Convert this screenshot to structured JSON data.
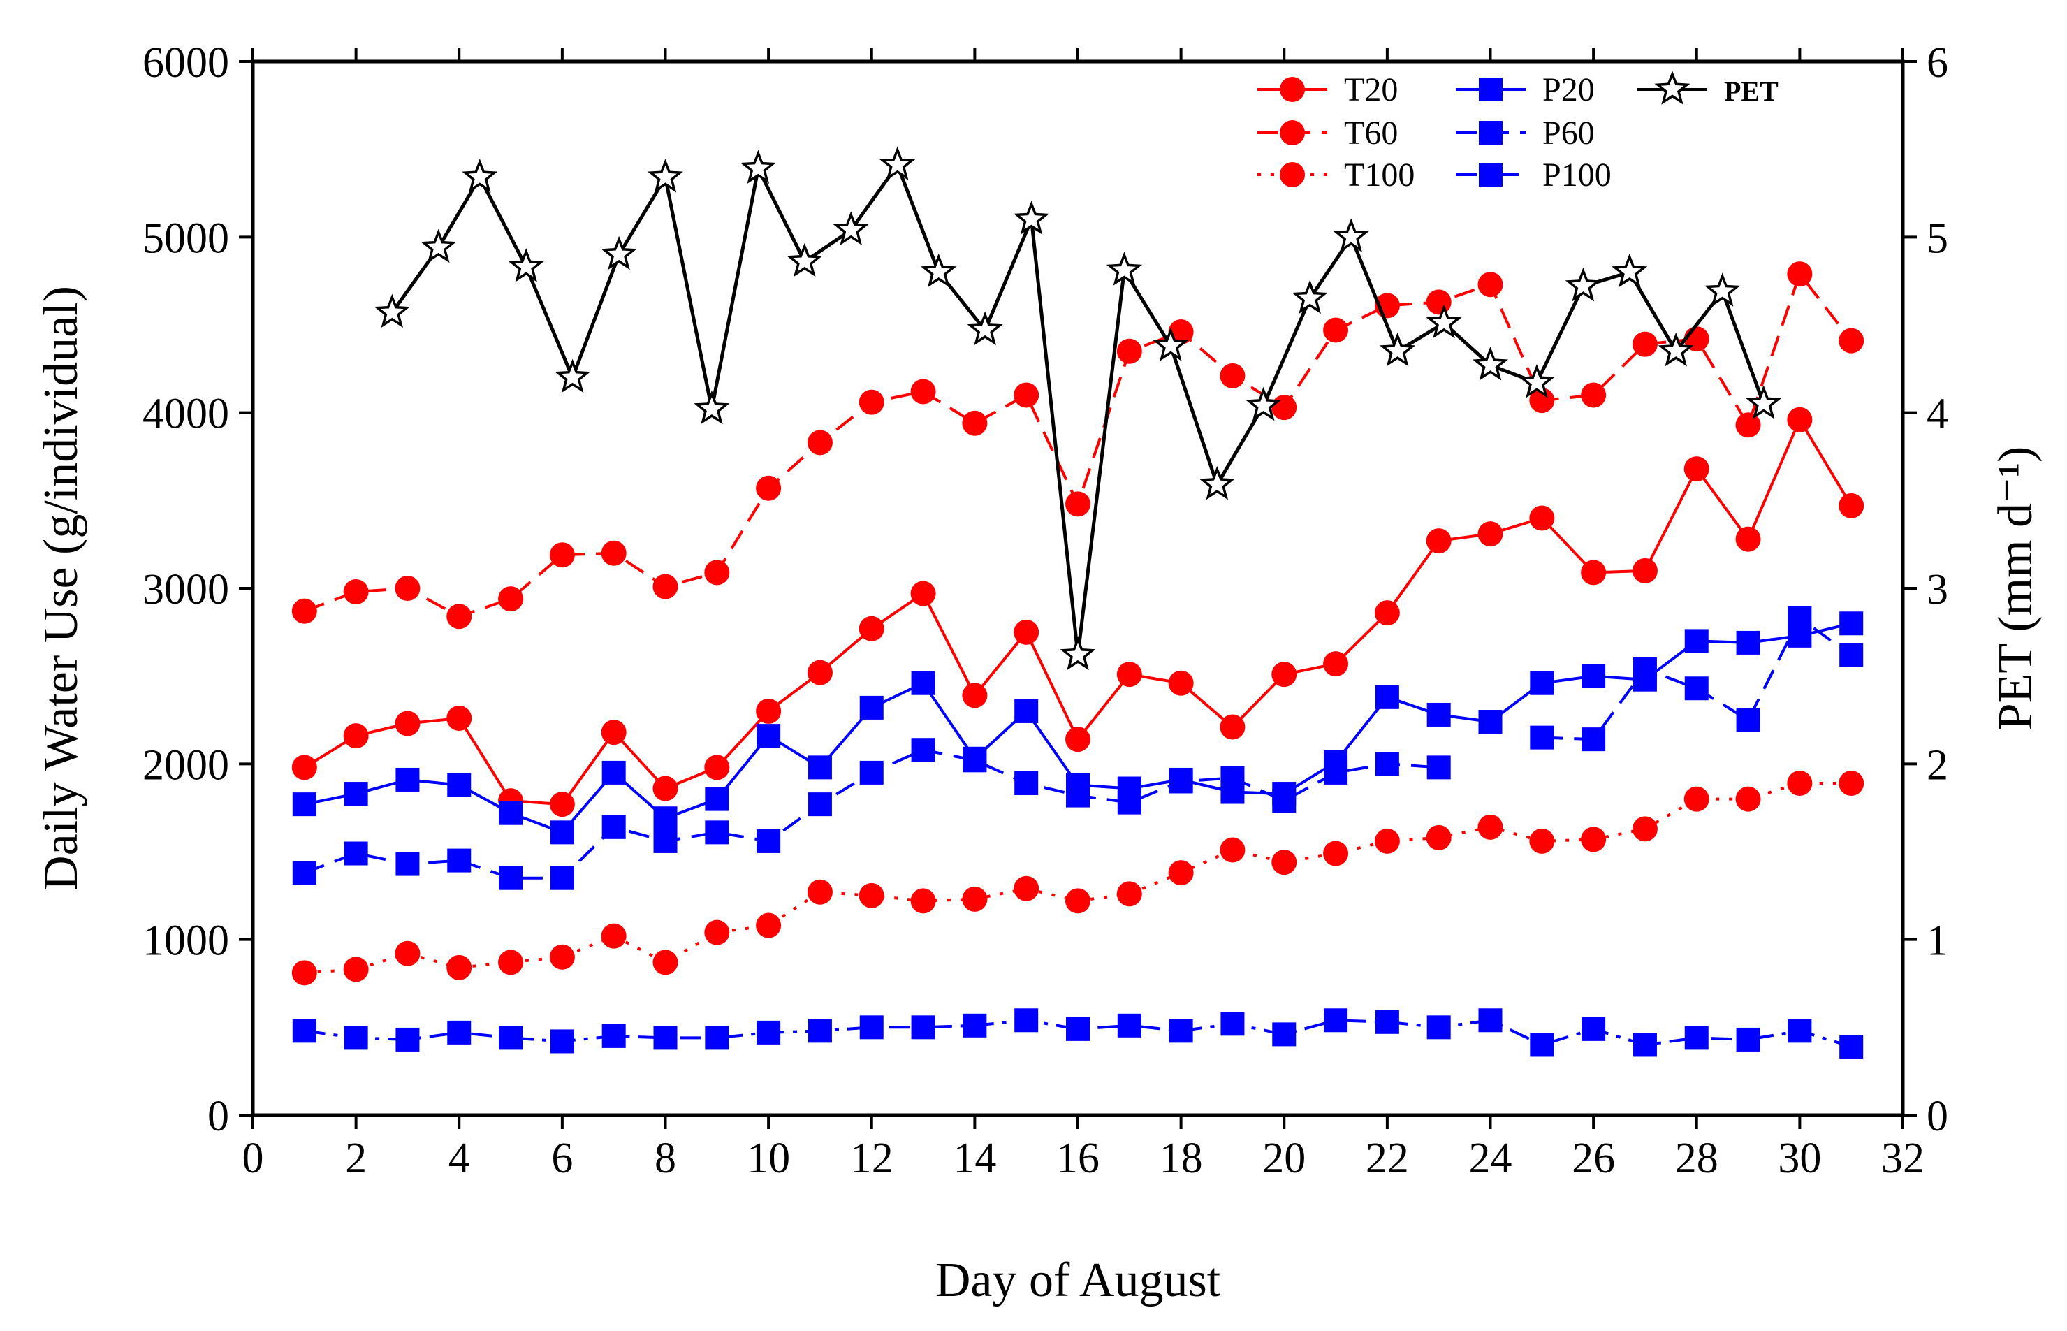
{
  "chart_data": {
    "type": "line",
    "xlabel": "Day of August",
    "ylabel": "Daily Water Use (g/individual)",
    "y2label": "PET (mm d⁻¹)",
    "xlim": [
      0,
      32
    ],
    "ylim": [
      0,
      6000
    ],
    "y2lim": [
      0,
      6
    ],
    "xticks": [
      0,
      2,
      4,
      6,
      8,
      10,
      12,
      14,
      16,
      18,
      20,
      22,
      24,
      26,
      28,
      30,
      32
    ],
    "yticks": [
      0,
      1000,
      2000,
      3000,
      4000,
      5000,
      6000
    ],
    "y2ticks": [
      0,
      1,
      2,
      3,
      4,
      5,
      6
    ],
    "legend_position": "top-right",
    "series": [
      {
        "name": "T20",
        "axis": "left",
        "color": "#ff0000",
        "marker": "circle",
        "dash": "solid",
        "x": [
          1,
          2,
          3,
          4,
          5,
          6,
          7,
          8,
          9,
          10,
          11,
          12,
          13,
          14,
          15,
          16,
          17,
          18,
          19,
          20,
          21,
          22,
          23,
          24,
          25,
          26,
          27,
          28,
          29,
          30,
          31
        ],
        "values": [
          1980,
          2160,
          2230,
          2260,
          1790,
          1770,
          2180,
          1860,
          1980,
          2300,
          2520,
          2770,
          2970,
          2390,
          2750,
          2140,
          2510,
          2460,
          2210,
          2510,
          2570,
          2860,
          3270,
          3310,
          3400,
          3090,
          3100,
          3680,
          3280,
          3960,
          3470
        ]
      },
      {
        "name": "T60",
        "axis": "left",
        "color": "#ff0000",
        "marker": "circle",
        "dash": "dashed",
        "x": [
          1,
          2,
          3,
          4,
          5,
          6,
          7,
          8,
          9,
          10,
          11,
          12,
          13,
          14,
          15,
          16,
          17,
          18,
          19,
          20,
          21,
          22,
          23,
          24,
          25,
          26,
          27,
          28,
          29,
          30,
          31
        ],
        "values": [
          2870,
          2980,
          3000,
          2840,
          2940,
          3190,
          3200,
          3010,
          3090,
          3570,
          3830,
          4060,
          4120,
          3940,
          4100,
          3480,
          4350,
          4460,
          4210,
          4030,
          4470,
          4610,
          4630,
          4730,
          4070,
          4100,
          4390,
          4420,
          3930,
          4790,
          4410
        ]
      },
      {
        "name": "T100",
        "axis": "left",
        "color": "#ff0000",
        "marker": "circle",
        "dash": "dotted",
        "x": [
          1,
          2,
          3,
          4,
          5,
          6,
          7,
          8,
          9,
          10,
          11,
          12,
          13,
          14,
          15,
          16,
          17,
          18,
          19,
          20,
          21,
          22,
          23,
          24,
          25,
          26,
          27,
          28,
          29,
          30,
          31
        ],
        "values": [
          810,
          830,
          920,
          840,
          870,
          900,
          1020,
          870,
          1040,
          1080,
          1270,
          1250,
          1220,
          1230,
          1290,
          1220,
          1260,
          1380,
          1510,
          1440,
          1490,
          1560,
          1580,
          1640,
          1560,
          1570,
          1630,
          1800,
          1800,
          1890,
          1890
        ]
      },
      {
        "name": "P20",
        "axis": "left",
        "color": "#0000ff",
        "marker": "square",
        "dash": "solid",
        "x": [
          1,
          2,
          3,
          4,
          5,
          6,
          7,
          8,
          9,
          10,
          11,
          12,
          13,
          14,
          15,
          16,
          17,
          18,
          19,
          20,
          21,
          22,
          23,
          24,
          25,
          26,
          27,
          28,
          29,
          30,
          31
        ],
        "values": [
          1770,
          1830,
          1910,
          1880,
          1720,
          1610,
          1950,
          1690,
          1800,
          2160,
          1980,
          2320,
          2460,
          2030,
          2300,
          1880,
          1860,
          1910,
          1840,
          1830,
          2010,
          2380,
          2280,
          2240,
          2460,
          2500,
          2480,
          2700,
          2690,
          2730,
          2800
        ]
      },
      {
        "name": "P60",
        "axis": "left",
        "color": "#0000ff",
        "marker": "square",
        "dash": "dashed",
        "x": [
          1,
          2,
          3,
          4,
          5,
          6,
          7,
          8,
          9,
          10,
          11,
          12,
          13,
          14,
          15,
          16,
          17,
          18,
          19,
          20,
          21,
          22,
          23,
          24,
          25,
          26,
          27,
          28,
          29,
          30,
          31
        ],
        "values": [
          1380,
          1490,
          1430,
          1450,
          1350,
          1350,
          1640,
          1560,
          1610,
          1560,
          1770,
          1950,
          2080,
          2020,
          1890,
          1820,
          1780,
          1900,
          1920,
          1790,
          1950,
          2000,
          1980,
          null,
          2150,
          2140,
          2540,
          2430,
          2250,
          2830,
          2620
        ]
      },
      {
        "name": "P100",
        "axis": "left",
        "color": "#0000ff",
        "marker": "square",
        "dash": "dashdot",
        "x": [
          1,
          2,
          3,
          4,
          5,
          6,
          7,
          8,
          9,
          10,
          11,
          12,
          13,
          14,
          15,
          16,
          17,
          18,
          19,
          20,
          21,
          22,
          23,
          24,
          25,
          26,
          27,
          28,
          29,
          30,
          31
        ],
        "values": [
          480,
          440,
          430,
          470,
          440,
          420,
          450,
          440,
          440,
          470,
          480,
          500,
          500,
          510,
          540,
          490,
          510,
          480,
          520,
          460,
          540,
          530,
          500,
          540,
          400,
          490,
          400,
          440,
          430,
          480,
          390
        ]
      },
      {
        "name": "PET",
        "axis": "right",
        "color": "#000000",
        "marker": "star",
        "dash": "solid",
        "x": [
          2.7,
          3.6,
          4.4,
          5.3,
          6.2,
          7.1,
          8.0,
          8.9,
          9.8,
          10.7,
          11.6,
          12.5,
          13.3,
          14.2,
          15.1,
          16.0,
          16.9,
          17.8,
          18.7,
          19.6,
          20.5,
          21.3,
          22.2,
          23.1,
          24.0,
          24.9,
          25.8,
          26.7,
          27.6,
          28.5,
          29.3
        ],
        "values": [
          4.57,
          4.94,
          5.34,
          4.83,
          4.2,
          4.9,
          5.34,
          4.02,
          5.39,
          4.86,
          5.04,
          5.41,
          4.8,
          4.47,
          5.1,
          2.62,
          4.81,
          4.38,
          3.59,
          4.04,
          4.65,
          5.0,
          4.35,
          4.51,
          4.27,
          4.17,
          4.72,
          4.8,
          4.35,
          4.69,
          4.05
        ]
      }
    ]
  }
}
